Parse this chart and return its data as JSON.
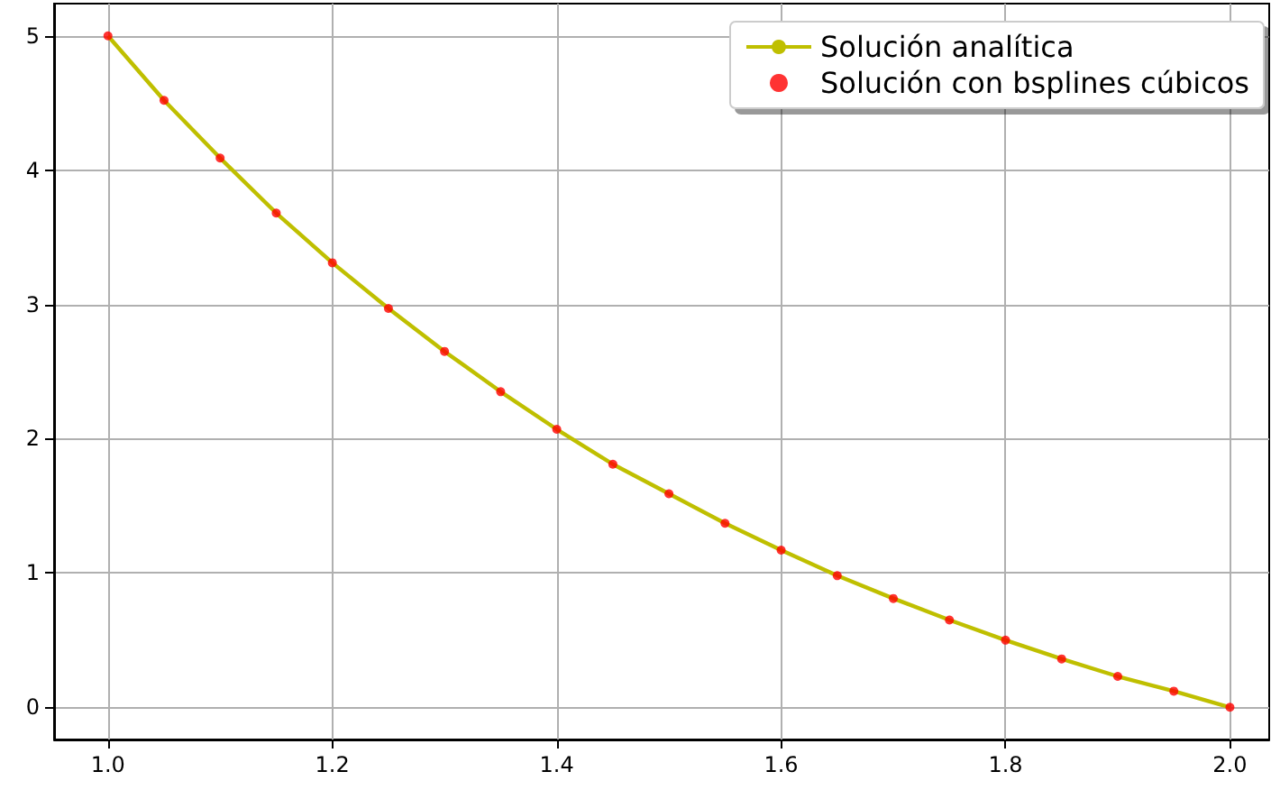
{
  "chart_data": {
    "type": "line",
    "xlim": [
      0.952,
      2.035
    ],
    "ylim": [
      -0.24,
      5.24
    ],
    "xticks": [
      {
        "value": 1,
        "label": "1.0"
      },
      {
        "value": 1.2,
        "label": "1.2"
      },
      {
        "value": 1.4,
        "label": "1.4"
      },
      {
        "value": 1.6,
        "label": "1.6"
      },
      {
        "value": 1.8,
        "label": "1.8"
      },
      {
        "value": 2,
        "label": "2.0"
      }
    ],
    "yticks": [
      0,
      1,
      2,
      3,
      4,
      5
    ],
    "grid": true,
    "legend": "top right",
    "series": [
      {
        "name": "Solución analítica",
        "color": "#bfbf00",
        "marker": "none",
        "line_style": "solid",
        "x": [
          1,
          1.05,
          1.1,
          1.15,
          1.2,
          1.25,
          1.3,
          1.35,
          1.4,
          1.45,
          1.5,
          1.55,
          1.6,
          1.65,
          1.7,
          1.75,
          1.8,
          1.85,
          1.9,
          1.95,
          2
        ],
        "values": [
          5,
          4.52,
          4.09,
          3.68,
          3.31,
          2.97,
          2.65,
          2.35,
          2.07,
          1.81,
          1.59,
          1.37,
          1.17,
          0.98,
          0.81,
          0.65,
          0.5,
          0.36,
          0.23,
          0.12,
          0
        ]
      },
      {
        "name": "Solución con bsplines cúbicos",
        "type": "scatter",
        "color": "#ff0000",
        "marker": "circle",
        "x": [
          1,
          1.05,
          1.1,
          1.15,
          1.2,
          1.25,
          1.3,
          1.35,
          1.4,
          1.45,
          1.5,
          1.55,
          1.6,
          1.65,
          1.7,
          1.75,
          1.8,
          1.85,
          1.9,
          1.95,
          2
        ],
        "values": [
          5,
          4.52,
          4.09,
          3.68,
          3.31,
          2.97,
          2.65,
          2.35,
          2.07,
          1.81,
          1.59,
          1.37,
          1.17,
          0.98,
          0.81,
          0.65,
          0.5,
          0.36,
          0.23,
          0.12,
          0
        ]
      }
    ]
  }
}
